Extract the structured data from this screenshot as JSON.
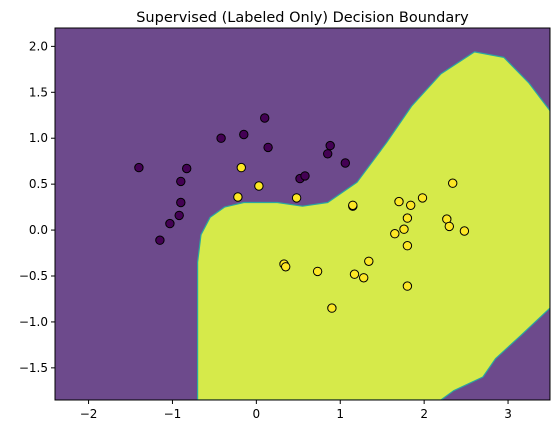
{
  "chart_data": {
    "type": "scatter",
    "title": "Supervised (Labeled Only) Decision Boundary",
    "xlabel": "",
    "ylabel": "",
    "xlim": [
      -2.4,
      3.5
    ],
    "ylim": [
      -1.85,
      2.2
    ],
    "x_ticks": [
      -2,
      -1,
      0,
      1,
      2,
      3
    ],
    "y_ticks": [
      -1.5,
      -1.0,
      -0.5,
      0.0,
      0.5,
      1.0,
      1.5,
      2.0
    ],
    "grid": false,
    "legend": "none",
    "colors": {
      "class_0_region": "#6d4a8c",
      "class_1_region": "#d6ea4a",
      "region_edge": "#2aa7a0",
      "class_0_point": "#440154",
      "class_1_point": "#fde725",
      "point_edge": "#000000"
    },
    "decision_region_class_1_boundary": [
      [
        -0.7,
        -1.85
      ],
      [
        -0.7,
        -0.35
      ],
      [
        -0.66,
        -0.05
      ],
      [
        -0.55,
        0.14
      ],
      [
        -0.38,
        0.25
      ],
      [
        -0.15,
        0.3
      ],
      [
        0.25,
        0.3
      ],
      [
        0.55,
        0.26
      ],
      [
        0.85,
        0.3
      ],
      [
        1.2,
        0.52
      ],
      [
        1.55,
        0.95
      ],
      [
        1.85,
        1.35
      ],
      [
        2.2,
        1.7
      ],
      [
        2.6,
        1.94
      ],
      [
        2.95,
        1.88
      ],
      [
        3.25,
        1.6
      ],
      [
        3.5,
        1.3
      ],
      [
        3.5,
        -0.85
      ],
      [
        3.15,
        -1.15
      ],
      [
        2.85,
        -1.4
      ],
      [
        2.7,
        -1.6
      ],
      [
        2.35,
        -1.75
      ],
      [
        2.2,
        -1.85
      ]
    ],
    "series": [
      {
        "class": 0,
        "points": [
          [
            -1.4,
            0.68
          ],
          [
            -0.83,
            0.67
          ],
          [
            -0.9,
            0.53
          ],
          [
            -0.9,
            0.3
          ],
          [
            -0.92,
            0.16
          ],
          [
            -1.03,
            0.07
          ],
          [
            -1.15,
            -0.11
          ],
          [
            -0.42,
            1.0
          ],
          [
            -0.15,
            1.04
          ],
          [
            0.1,
            1.22
          ],
          [
            0.14,
            0.9
          ],
          [
            0.52,
            0.56
          ],
          [
            0.58,
            0.59
          ],
          [
            0.85,
            0.83
          ],
          [
            0.88,
            0.92
          ],
          [
            1.06,
            0.73
          ],
          [
            1.15,
            0.26
          ]
        ]
      },
      {
        "class": 1,
        "points": [
          [
            -0.18,
            0.68
          ],
          [
            0.03,
            0.48
          ],
          [
            -0.22,
            0.36
          ],
          [
            0.48,
            0.35
          ],
          [
            1.15,
            0.27
          ],
          [
            0.33,
            -0.37
          ],
          [
            0.35,
            -0.4
          ],
          [
            0.73,
            -0.45
          ],
          [
            0.9,
            -0.85
          ],
          [
            1.17,
            -0.48
          ],
          [
            1.28,
            -0.52
          ],
          [
            1.34,
            -0.34
          ],
          [
            1.65,
            -0.04
          ],
          [
            1.7,
            0.31
          ],
          [
            1.76,
            0.01
          ],
          [
            1.8,
            0.13
          ],
          [
            1.84,
            0.27
          ],
          [
            1.98,
            0.35
          ],
          [
            1.8,
            -0.17
          ],
          [
            1.8,
            -0.61
          ],
          [
            2.27,
            0.12
          ],
          [
            2.3,
            0.04
          ],
          [
            2.34,
            0.51
          ],
          [
            2.48,
            -0.01
          ]
        ]
      }
    ]
  }
}
